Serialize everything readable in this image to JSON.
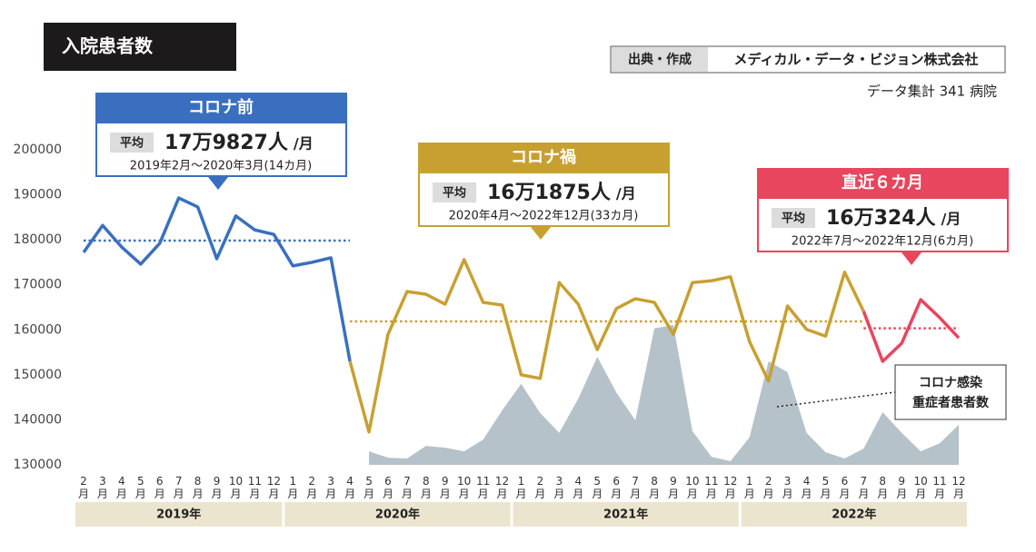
{
  "header": {
    "title": "入院患者数",
    "source_tag": "出典・作成",
    "source": "メディカル・データ・ビジョン株式会社",
    "note": "データ集計 341 病院"
  },
  "chart_data": {
    "type": "line",
    "categories": [
      "2月",
      "3月",
      "4月",
      "5月",
      "6月",
      "7月",
      "8月",
      "9月",
      "10月",
      "11月",
      "12月",
      "1月",
      "2月",
      "3月",
      "4月",
      "5月",
      "6月",
      "7月",
      "8月",
      "9月",
      "10月",
      "11月",
      "12月",
      "1月",
      "2月",
      "3月",
      "4月",
      "5月",
      "6月",
      "7月",
      "8月",
      "9月",
      "10月",
      "11月",
      "12月",
      "1月",
      "2月",
      "3月",
      "4月",
      "5月",
      "6月",
      "7月",
      "8月",
      "9月",
      "10月",
      "11月",
      "12月"
    ],
    "years": [
      "2019年",
      "2020年",
      "2021年",
      "2022年"
    ],
    "ylim": [
      130000,
      200000
    ],
    "yticks": [
      130000,
      140000,
      150000,
      160000,
      170000,
      180000,
      190000,
      200000
    ],
    "grid": false,
    "average_tag": "平均",
    "average_unit": "/月",
    "series": [
      {
        "type": "area",
        "color": "#b5c2ca",
        "values": [
          null,
          null,
          null,
          null,
          null,
          null,
          null,
          null,
          null,
          null,
          null,
          null,
          null,
          null,
          null,
          133000,
          131600,
          131400,
          134200,
          133800,
          133000,
          135600,
          142100,
          148000,
          141500,
          137100,
          144700,
          154000,
          146100,
          139900,
          160300,
          161100,
          137500,
          131800,
          130800,
          136100,
          153000,
          150600,
          137100,
          132800,
          131400,
          133600,
          141700,
          137100,
          133000,
          134800,
          138900
        ]
      },
      {
        "name": "コロナ前",
        "color": "#3a6fc0",
        "average": 179827,
        "average_label": "17万9827人",
        "period": "2019年2月～2020年3月(14カ月)",
        "values": [
          177200,
          183200,
          178400,
          174600,
          179200,
          189300,
          187300,
          175800,
          185300,
          182200,
          181200,
          174200,
          175000,
          176000,
          153000,
          null,
          null,
          null,
          null,
          null,
          null,
          null,
          null,
          null,
          null,
          null,
          null,
          null,
          null,
          null,
          null,
          null,
          null,
          null,
          null,
          null,
          null,
          null,
          null,
          null,
          null,
          null,
          null,
          null,
          null,
          null,
          null
        ]
      },
      {
        "name": "コロナ禍",
        "color": "#c8a032",
        "average": 161875,
        "average_label": "16万1875人",
        "period": "2020年4月～2022年12月(33カ月)",
        "values": [
          null,
          null,
          null,
          null,
          null,
          null,
          null,
          null,
          null,
          null,
          null,
          null,
          null,
          null,
          153000,
          137300,
          159000,
          168500,
          167900,
          165700,
          175600,
          166100,
          165500,
          150000,
          149200,
          170500,
          165700,
          155600,
          164700,
          166900,
          166100,
          159000,
          170500,
          170900,
          171800,
          157400,
          148600,
          165300,
          160100,
          158600,
          172800,
          164100,
          null,
          null,
          null,
          null,
          null
        ]
      },
      {
        "name": "直近６カ月",
        "color": "#e8455e",
        "average": 160324,
        "average_label": "16万324人",
        "period": "2022年7月～2022年12月(6カ月)",
        "values": [
          null,
          null,
          null,
          null,
          null,
          null,
          null,
          null,
          null,
          null,
          null,
          null,
          null,
          null,
          null,
          null,
          null,
          null,
          null,
          null,
          null,
          null,
          null,
          null,
          null,
          null,
          null,
          null,
          null,
          null,
          null,
          null,
          null,
          null,
          null,
          null,
          null,
          null,
          null,
          null,
          null,
          164100,
          153000,
          157000,
          166700,
          162700,
          158200
        ]
      }
    ],
    "annotation": {
      "lines": [
        "コロナ感染",
        "重症者患者数"
      ]
    }
  }
}
